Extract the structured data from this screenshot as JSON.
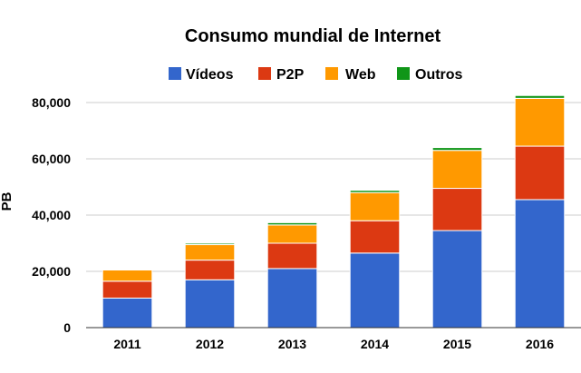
{
  "chart_data": {
    "type": "bar",
    "stacked": true,
    "title": "Consumo mundial de Internet",
    "ylabel": "PB",
    "xlabel": "",
    "categories": [
      "2011",
      "2012",
      "2013",
      "2014",
      "2015",
      "2016"
    ],
    "series": [
      {
        "name": "Vídeos",
        "color": "#3366cc",
        "values": [
          10500,
          17000,
          21000,
          26500,
          34500,
          45500
        ]
      },
      {
        "name": "P2P",
        "color": "#dc3912",
        "values": [
          6000,
          7000,
          9000,
          11500,
          15000,
          19000
        ]
      },
      {
        "name": "Web",
        "color": "#ff9900",
        "values": [
          4000,
          5500,
          6500,
          10000,
          13500,
          17000
        ]
      },
      {
        "name": "Outros",
        "color": "#109618",
        "values": [
          300,
          500,
          800,
          800,
          1000,
          1000
        ]
      }
    ],
    "ylim": [
      0,
      80000
    ],
    "yticks": [
      "0",
      "20,000",
      "40,000",
      "60,000",
      "80,000"
    ],
    "ytick_values": [
      0,
      20000,
      40000,
      60000,
      80000
    ],
    "grid": true,
    "legend_position": "top"
  }
}
